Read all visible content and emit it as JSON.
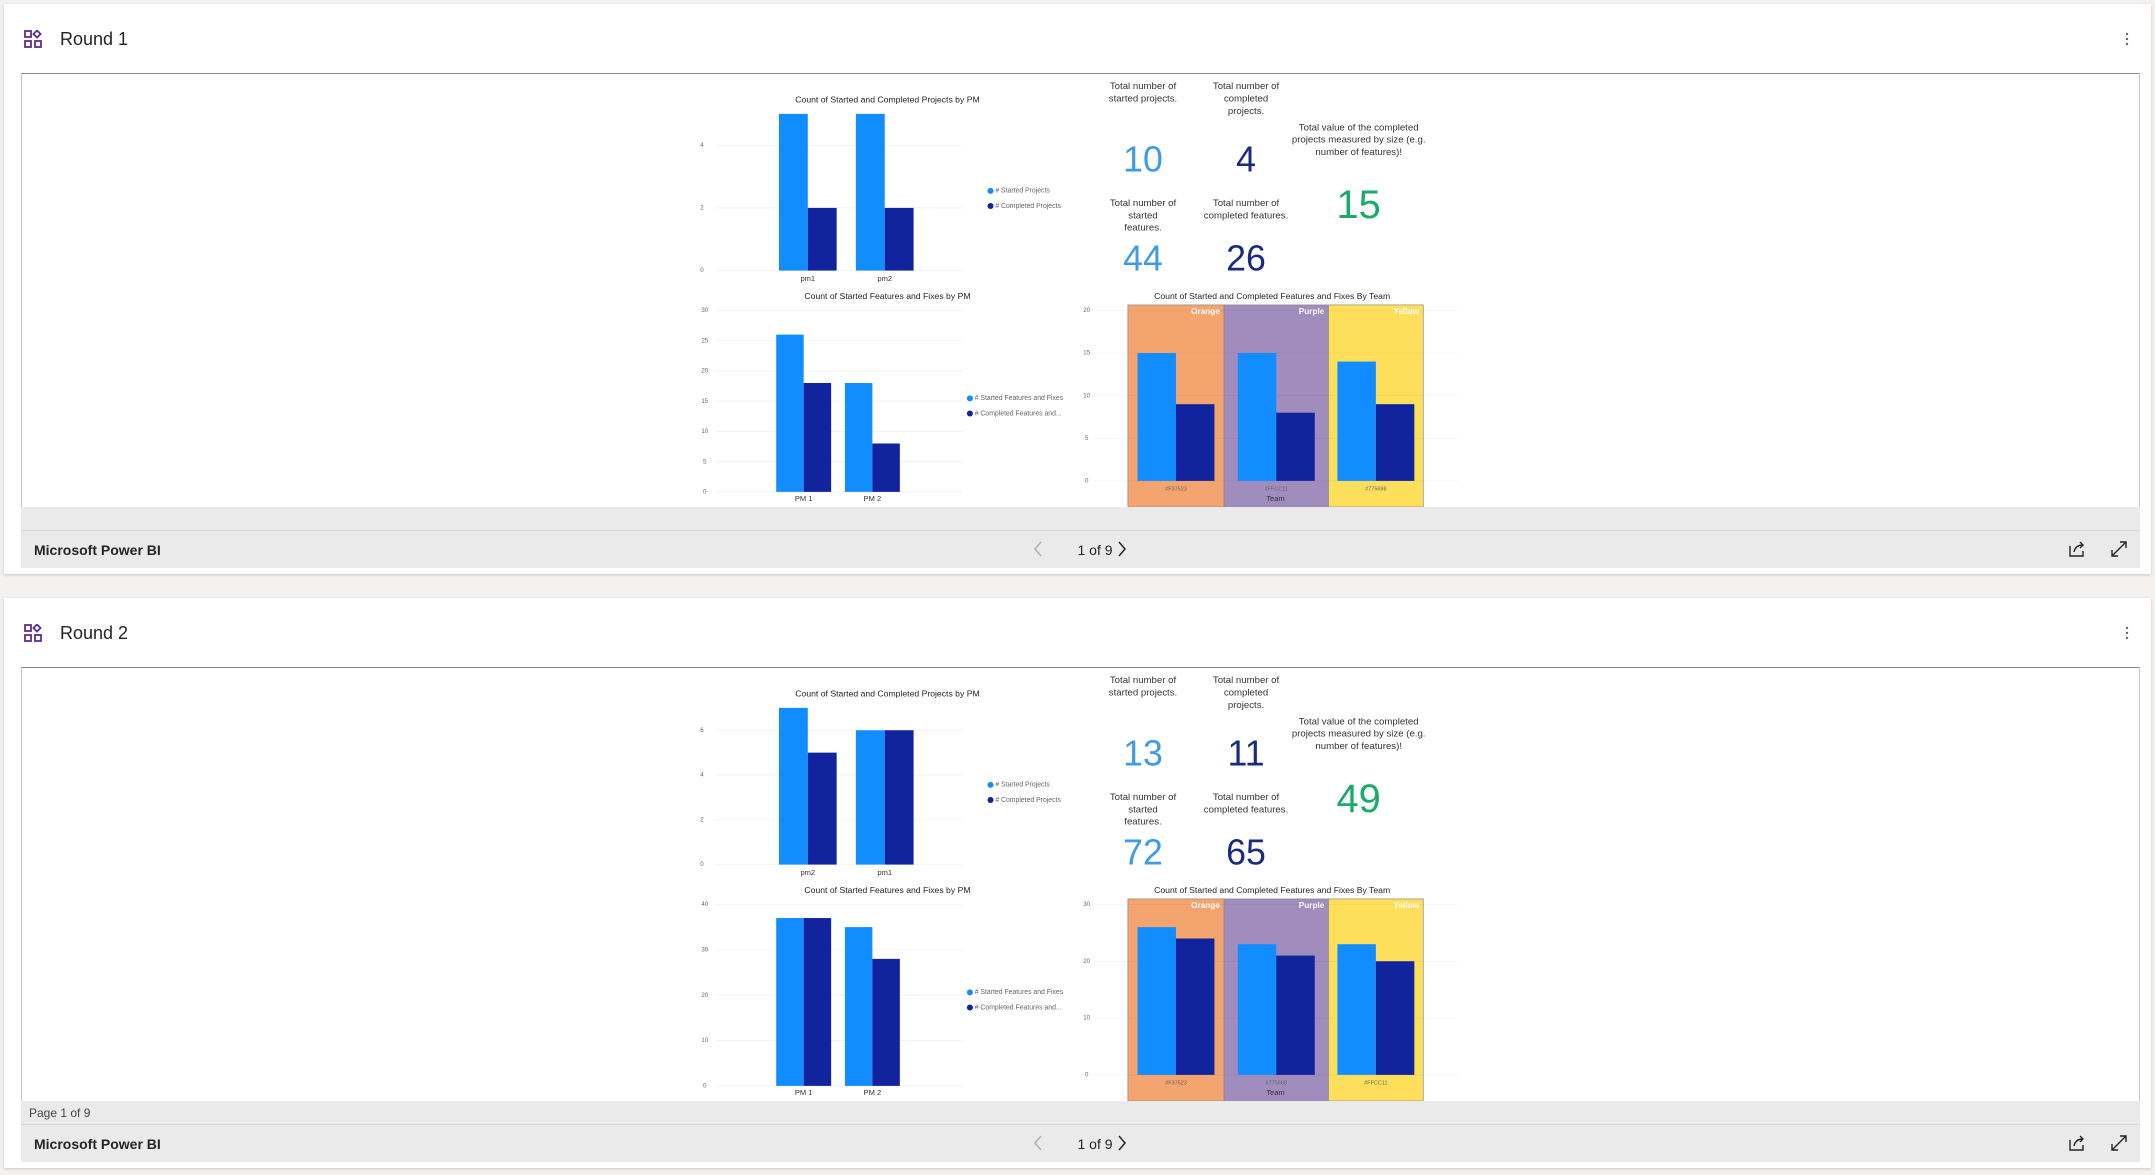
{
  "panels": [
    {
      "title": "Round 1",
      "report": {
        "charts": [
          {
            "type": "bar",
            "title": "Count of Started and Completed Projects by PM",
            "categories": [
              "pm1",
              "pm2"
            ],
            "series": [
              {
                "name": "# Started Projects",
                "color": "#118dff",
                "values": [
                  5,
                  5
                ]
              },
              {
                "name": "# Completed Projects",
                "color": "#12239e",
                "values": [
                  2,
                  2
                ]
              }
            ],
            "ylim": [
              0,
              5
            ],
            "yticks": [
              0,
              2,
              4
            ],
            "legend": "right",
            "grid": true
          },
          {
            "type": "bar",
            "title": "Count of Started Features and Fixes by PM",
            "categories": [
              "PM 1",
              "PM 2"
            ],
            "series": [
              {
                "name": "# Started Features and Fixes",
                "color": "#118dff",
                "values": [
                  26,
                  18
                ]
              },
              {
                "name": "# Completed Features and...",
                "color": "#12239e",
                "values": [
                  18,
                  8
                ]
              }
            ],
            "ylim": [
              0,
              30
            ],
            "yticks": [
              0,
              5,
              10,
              15,
              20,
              25,
              30
            ],
            "legend": "right",
            "grid": true
          },
          {
            "type": "bar",
            "title": "Count of Started and Completed Features and Fixes By Team",
            "categories": [
              "#F37523",
              "#FFCC11",
              "#775698"
            ],
            "bands": [
              {
                "label": "Orange",
                "color": "#f4a46e"
              },
              {
                "label": "Purple",
                "color": "#a18cbe"
              },
              {
                "label": "Yellow",
                "color": "#fddf5b"
              }
            ],
            "x_label": "Team",
            "series": [
              {
                "color": "#118dff",
                "values": [
                  15,
                  15,
                  14
                ]
              },
              {
                "color": "#12239e",
                "values": [
                  9,
                  8,
                  9
                ]
              }
            ],
            "ylim": [
              0,
              20
            ],
            "yticks": [
              0,
              5,
              10,
              15,
              20
            ],
            "grid": true
          }
        ],
        "cards": [
          {
            "label": "Total number of started projects.",
            "value": 10,
            "color": "#3f9be6"
          },
          {
            "label": "Total number of completed projects.",
            "value": 4,
            "color": "#1a2a80"
          },
          {
            "label": "Total number of started features.",
            "value": 44,
            "color": "#3f9be6"
          },
          {
            "label": "Total number of completed features.",
            "value": 26,
            "color": "#1a2a80"
          },
          {
            "label": "Total value of the completed projects measured by size (e.g. number of features)!",
            "value": 15,
            "color": "#1aab68"
          }
        ]
      },
      "footer": {
        "brand": "Microsoft Power BI",
        "pager": "1 of 9"
      }
    },
    {
      "title": "Round 2",
      "report": {
        "charts": [
          {
            "type": "bar",
            "title": "Count of Started and Completed Projects by PM",
            "categories": [
              "pm2",
              "pm1"
            ],
            "series": [
              {
                "name": "# Started Projects",
                "color": "#118dff",
                "values": [
                  7,
                  6
                ]
              },
              {
                "name": "# Completed Projects",
                "color": "#12239e",
                "values": [
                  5,
                  6
                ]
              }
            ],
            "ylim": [
              0,
              7
            ],
            "yticks": [
              0,
              2,
              4,
              6
            ],
            "legend": "right",
            "grid": true
          },
          {
            "type": "bar",
            "title": "Count of Started Features and Fixes by PM",
            "categories": [
              "PM 1",
              "PM 2"
            ],
            "series": [
              {
                "name": "# Started Features and Fixes",
                "color": "#118dff",
                "values": [
                  37,
                  35
                ]
              },
              {
                "name": "# Completed Features and...",
                "color": "#12239e",
                "values": [
                  37,
                  28
                ]
              }
            ],
            "ylim": [
              0,
              40
            ],
            "yticks": [
              0,
              10,
              20,
              30,
              40
            ],
            "legend": "right",
            "grid": true
          },
          {
            "type": "bar",
            "title": "Count of Started and Completed Features and Fixes By Team",
            "categories": [
              "#F37523",
              "#775698",
              "#FFCC11"
            ],
            "bands": [
              {
                "label": "Orange",
                "color": "#f4a46e"
              },
              {
                "label": "Purple",
                "color": "#a18cbe"
              },
              {
                "label": "Yellow",
                "color": "#fddf5b"
              }
            ],
            "x_label": "Team",
            "series": [
              {
                "color": "#118dff",
                "values": [
                  26,
                  23,
                  23
                ]
              },
              {
                "color": "#12239e",
                "values": [
                  24,
                  21,
                  20
                ]
              }
            ],
            "ylim": [
              0,
              30
            ],
            "yticks": [
              0,
              10,
              20,
              30
            ],
            "grid": true
          }
        ],
        "cards": [
          {
            "label": "Total number of started projects.",
            "value": 13,
            "color": "#3f9be6"
          },
          {
            "label": "Total number of completed projects.",
            "value": 11,
            "color": "#1a2a80"
          },
          {
            "label": "Total number of started features.",
            "value": 72,
            "color": "#3f9be6"
          },
          {
            "label": "Total number of completed features.",
            "value": 65,
            "color": "#1a2a80"
          },
          {
            "label": "Total value of the completed projects measured by size (e.g. number of features)!",
            "value": 49,
            "color": "#1aab68"
          }
        ]
      },
      "status": "Page 1 of 9",
      "footer": {
        "brand": "Microsoft Power BI",
        "pager": "1 of 9"
      }
    }
  ]
}
